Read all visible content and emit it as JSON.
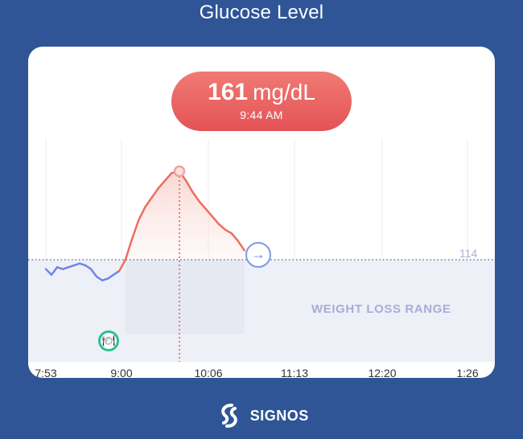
{
  "header": {
    "title": "Glucose Level"
  },
  "reading": {
    "value": "161",
    "unit": "mg/dL",
    "time": "9:44 AM"
  },
  "range": {
    "label": "WEIGHT LOSS RANGE",
    "threshold_label": "114"
  },
  "icons": {
    "meal": "meal-icon",
    "arrow": "arrow-right-icon",
    "brand": "signos-logo"
  },
  "brand": {
    "name": "SIGNOS"
  },
  "colors": {
    "background": "#2f5597",
    "line_in_range": "#6f86e6",
    "line_above": "#ec6e5e",
    "pill": "#e8585a",
    "range_fill": "#eef0f8",
    "meal_ring": "#2fbf8f"
  },
  "chart_data": {
    "type": "line",
    "x_unit": "time",
    "x_ticks": [
      "7:53",
      "9:00",
      "10:06",
      "11:13",
      "12:20",
      "1:26"
    ],
    "threshold": 114,
    "range_label": "WEIGHT LOSS RANGE",
    "ylim": [
      90,
      175
    ],
    "selected_point": {
      "x": "9:44",
      "y": 161
    },
    "meal_time": "8:54",
    "series": [
      {
        "x": [
          "7:53",
          "7:58",
          "8:03",
          "8:08",
          "8:13",
          "8:18",
          "8:23",
          "8:28",
          "8:33",
          "8:38",
          "8:43",
          "8:48",
          "8:53",
          "8:58",
          "9:03",
          "9:08",
          "9:13",
          "9:18",
          "9:23",
          "9:28",
          "9:33",
          "9:38",
          "9:44",
          "9:49",
          "9:54",
          "9:59",
          "10:04",
          "10:09",
          "10:14",
          "10:19",
          "10:24",
          "10:29",
          "10:34"
        ],
        "values": [
          109,
          106,
          110,
          109,
          110,
          111,
          112,
          111,
          109,
          105,
          103,
          104,
          106,
          108,
          114,
          125,
          135,
          142,
          147,
          152,
          156,
          160,
          161,
          156,
          150,
          145,
          141,
          137,
          133,
          130,
          128,
          124,
          119
        ]
      }
    ]
  }
}
